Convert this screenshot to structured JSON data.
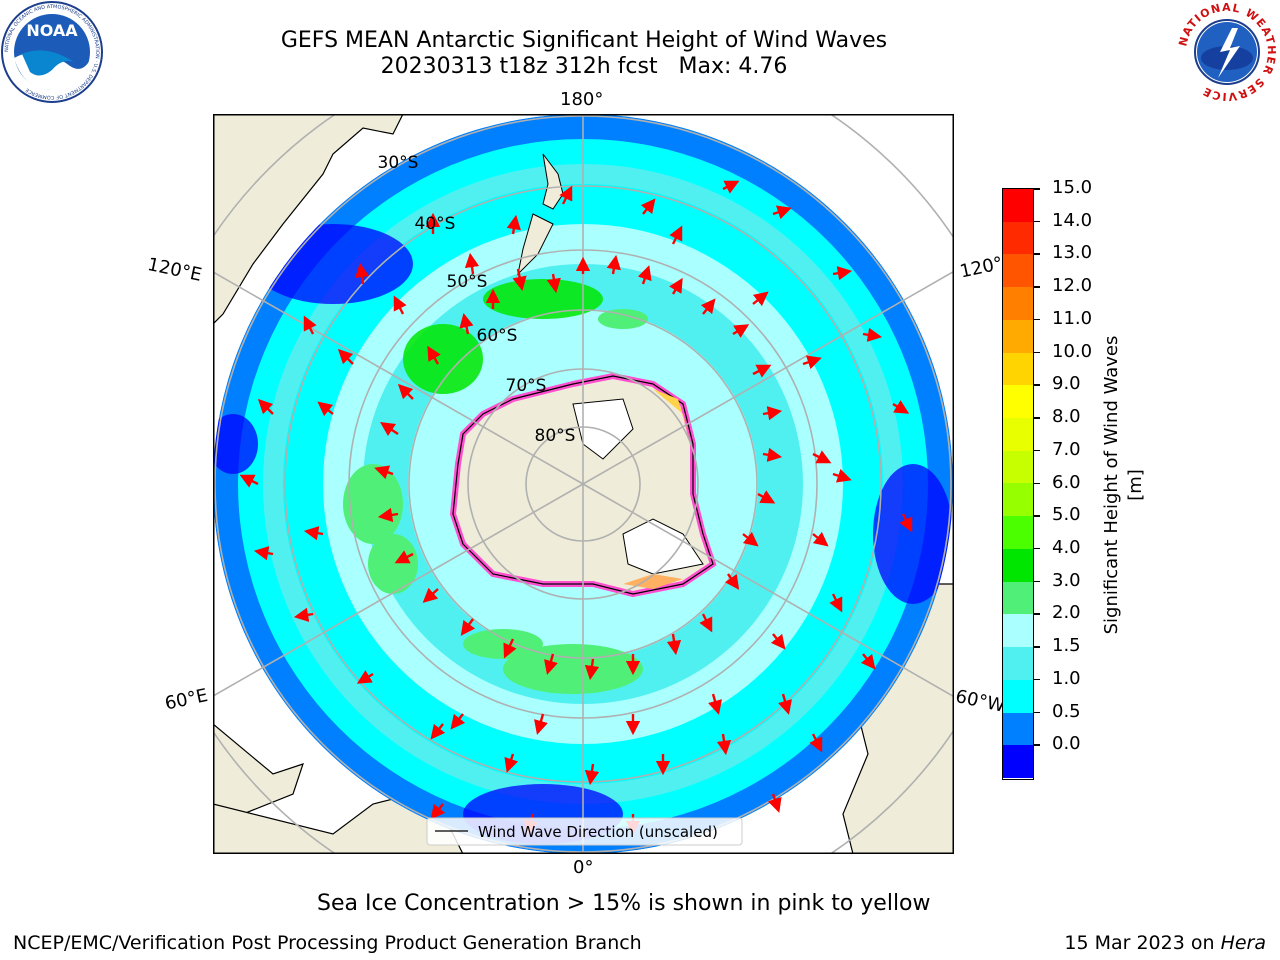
{
  "title_line1": "GEFS MEAN Antarctic Significant Height of Wind Waves",
  "title_line2": "20230313 t18z 312h fcst   Max: 4.76",
  "map": {
    "lon_labels": [
      "180°",
      "120°E",
      "120°",
      "60°E",
      "60°W",
      "0°"
    ],
    "lat_labels": [
      "30°S",
      "40°S",
      "50°S",
      "60°S",
      "70°S",
      "80°S"
    ],
    "legend_label": "Wind Wave Direction (unscaled)"
  },
  "colorbar": {
    "label": "Significant Height of Wind Waves [m]",
    "ticks": [
      "15.0",
      "14.0",
      "13.0",
      "12.0",
      "11.0",
      "10.0",
      "9.0",
      "8.0",
      "7.0",
      "6.0",
      "5.0",
      "4.0",
      "3.0",
      "2.0",
      "1.5",
      "1.0",
      "0.5",
      "0.0"
    ],
    "colors_top_to_bottom": [
      "#ff0000",
      "#ff2a00",
      "#ff5500",
      "#ff8000",
      "#ffaa00",
      "#ffd400",
      "#ffff00",
      "#e8ff00",
      "#c8ff00",
      "#96ff00",
      "#4bff00",
      "#00e600",
      "#50f078",
      "#aaffff",
      "#50f0f0",
      "#00ffff",
      "#0080ff",
      "#0000ff"
    ]
  },
  "note": "Sea Ice Concentration > 15% is shown in pink to yellow",
  "footer_left": "NCEP/EMC/Verification Post Processing Product Generation Branch",
  "footer_right_date": "15 Mar 2023 on ",
  "footer_right_machine": "Hera",
  "logos": {
    "noaa": "NOAA",
    "noaa_ring": "NATIONAL OCEANIC AND ATMOSPHERIC ADMINISTRATION · U.S. DEPARTMENT OF COMMERCE",
    "nws_ring": "NATIONAL WEATHER SERVICE"
  }
}
